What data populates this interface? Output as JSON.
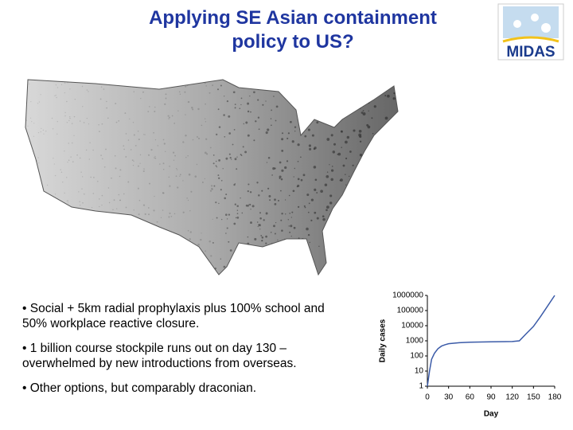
{
  "slide": {
    "title_lines": [
      "Applying SE Asian containment",
      "policy to US?"
    ],
    "logo": "MIDAS",
    "bullets": [
      "• Social + 5km radial prophylaxis plus 100% school and 50% workplace reactive closure.",
      "• 1 billion course stockpile runs out on day 130 – overwhelmed by new introductions from overseas.",
      "• Other options, but comparably draconian."
    ]
  },
  "chart_data": {
    "type": "line",
    "xlabel": "Day",
    "ylabel": "Daily cases",
    "x": [
      0,
      3,
      6,
      10,
      15,
      20,
      25,
      30,
      45,
      60,
      90,
      120,
      130,
      140,
      150,
      160,
      170,
      180
    ],
    "series": [
      {
        "name": "Daily cases",
        "color": "#3b5ba8",
        "values": [
          1,
          10,
          60,
          150,
          300,
          450,
          550,
          650,
          750,
          800,
          850,
          900,
          1000,
          3000,
          9000,
          40000,
          200000,
          1000000
        ]
      }
    ],
    "xlim": [
      0,
      180
    ],
    "xticks": [
      0,
      30,
      60,
      90,
      120,
      150,
      180
    ],
    "ylim": [
      1,
      1000000
    ],
    "yticks": [
      1,
      10,
      100,
      1000,
      10000,
      100000,
      1000000
    ],
    "log_y": true
  }
}
